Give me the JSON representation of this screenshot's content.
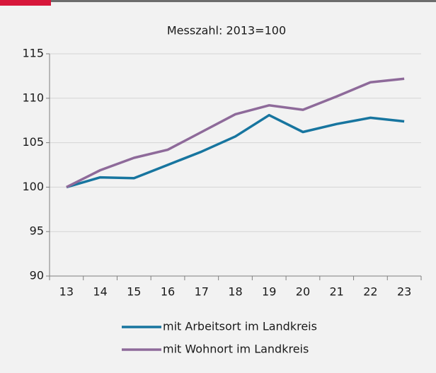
{
  "chart_data": {
    "type": "line",
    "title": "Messzahl: 2013=100",
    "categories": [
      "13",
      "14",
      "15",
      "16",
      "17",
      "18",
      "19",
      "20",
      "21",
      "22",
      "23"
    ],
    "series": [
      {
        "name": "mit Arbeitsort im Landkreis",
        "color": "#17759f",
        "values": [
          100,
          101.1,
          101.0,
          102.5,
          104.0,
          105.7,
          108.1,
          106.2,
          107.1,
          107.8,
          107.4
        ]
      },
      {
        "name": "mit Wohnort im Landkreis",
        "color": "#8e6a9a",
        "values": [
          100,
          101.9,
          103.3,
          104.2,
          106.2,
          108.2,
          109.2,
          108.7,
          110.2,
          111.8,
          112.2
        ]
      }
    ],
    "ylim": [
      90,
      115
    ],
    "yticks": [
      90,
      95,
      100,
      105,
      110,
      115
    ],
    "grid": true
  }
}
